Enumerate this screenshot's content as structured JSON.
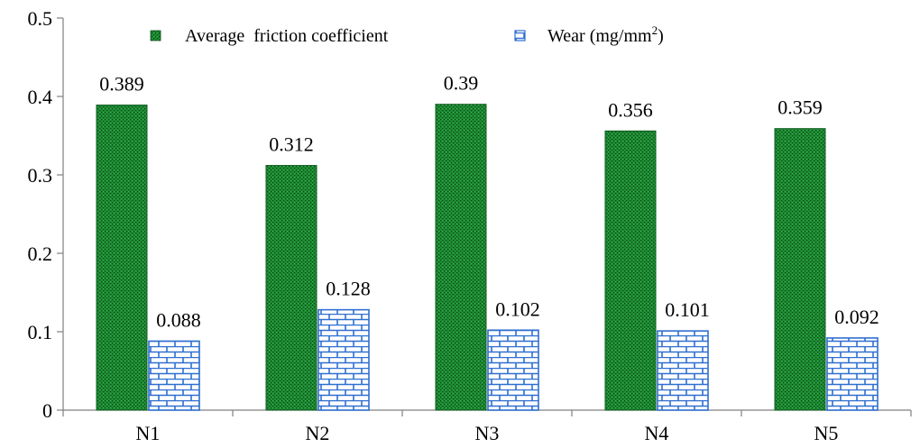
{
  "chart_data": {
    "type": "bar",
    "categories": [
      "N1",
      "N2",
      "N3",
      "N4",
      "N5"
    ],
    "series": [
      {
        "name": "Average  friction coefficient",
        "values": [
          0.389,
          0.312,
          0.39,
          0.356,
          0.359
        ],
        "labels": [
          "0.389",
          "0.312",
          "0.39",
          "0.356",
          "0.359"
        ],
        "color": "#1e8a32",
        "pattern": "dotted-green"
      },
      {
        "name": "Wear (mg/mm",
        "name_sup": "2",
        "name_suffix": ")",
        "values": [
          0.088,
          0.128,
          0.102,
          0.101,
          0.092
        ],
        "labels": [
          "0.088",
          "0.128",
          "0.102",
          "0.101",
          "0.092"
        ],
        "color": "#2f6fd0",
        "pattern": "brick-blue"
      }
    ],
    "ylim": [
      0,
      0.5
    ],
    "yticks": [
      0,
      0.1,
      0.2,
      0.3,
      0.4,
      0.5
    ],
    "ytick_labels": [
      "0",
      "0.1",
      "0.2",
      "0.3",
      "0.4",
      "0.5"
    ],
    "title": "",
    "xlabel": "",
    "ylabel": "",
    "grid": false,
    "legend_position": "top"
  }
}
